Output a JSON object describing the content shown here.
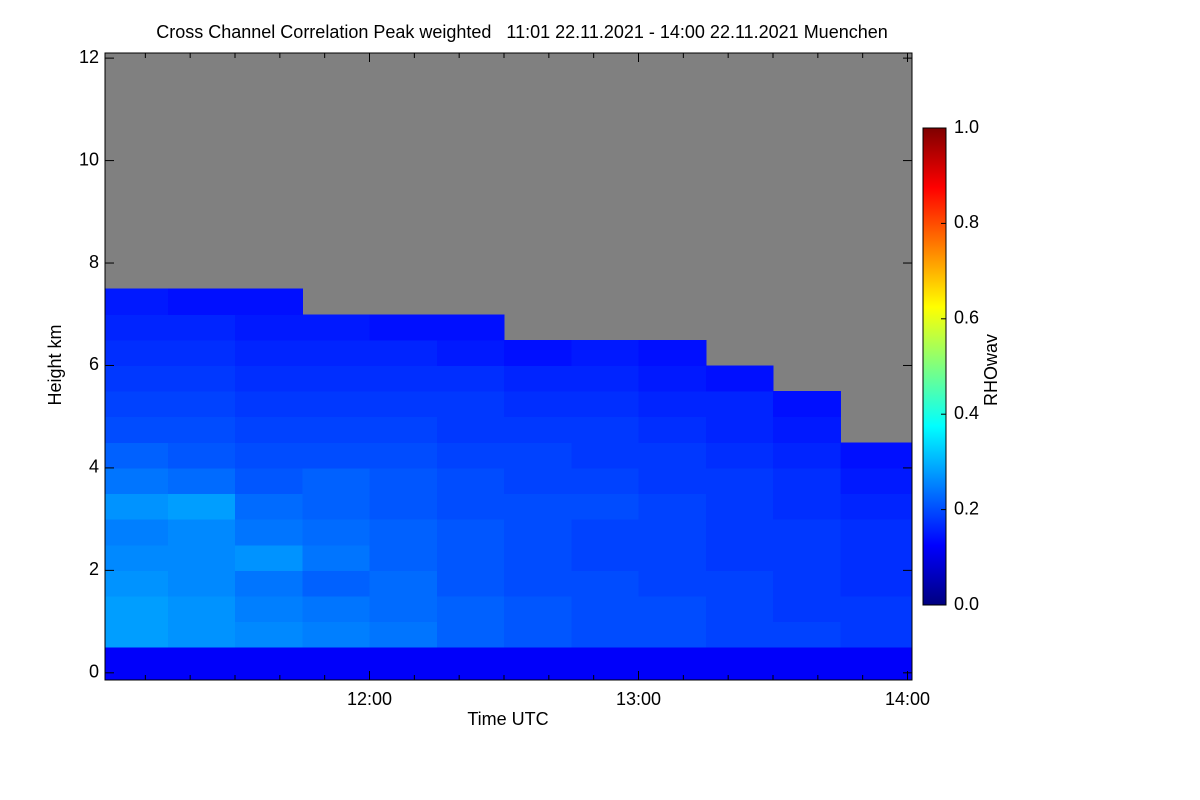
{
  "chart_data": {
    "type": "heatmap",
    "title": "Cross Channel Correlation Peak weighted   11:01 22.11.2021 - 14:00 22.11.2021 Muenchen",
    "xlabel": "Time UTC",
    "ylabel": "Height km",
    "colorbar_label": "RHOwav",
    "xlim": [
      11.0167,
      14.0167
    ],
    "ylim": [
      -0.14,
      12.1
    ],
    "xticks": [
      {
        "value": 12,
        "label": "12:00"
      },
      {
        "value": 13,
        "label": "13:00"
      },
      {
        "value": 14,
        "label": "14:00"
      }
    ],
    "xminorticks": [
      11.1667,
      11.3333,
      11.5,
      11.6667,
      11.8333,
      12.1667,
      12.3333,
      12.5,
      12.6667,
      12.8333,
      13.1667,
      13.3333,
      13.5,
      13.6667,
      13.8333
    ],
    "yticks": [
      0,
      2,
      4,
      6,
      8,
      10,
      12
    ],
    "clim": [
      0,
      1
    ],
    "cticks": [
      {
        "value": 0,
        "label": "0.0"
      },
      {
        "value": 0.2,
        "label": "0.2"
      },
      {
        "value": 0.4,
        "label": "0.4"
      },
      {
        "value": 0.6,
        "label": "0.6"
      },
      {
        "value": 0.8,
        "label": "0.8"
      },
      {
        "value": 1,
        "label": "1.0"
      }
    ],
    "colormap": [
      "#00007f",
      "#0000ff",
      "#007fff",
      "#00ffff",
      "#7fff7f",
      "#ffff00",
      "#ff7f00",
      "#ff0000",
      "#7f0000"
    ],
    "missing_color": "#808080",
    "x_edges": [
      11.0167,
      11.25,
      11.5,
      11.75,
      12,
      12.25,
      12.5,
      12.75,
      13,
      13.25,
      13.5,
      13.75,
      14.0167
    ],
    "y_edges": [
      -0.14,
      0.5,
      1,
      1.5,
      2,
      2.5,
      3,
      3.5,
      4,
      4.5,
      5,
      5.5,
      6,
      6.5,
      7,
      7.5
    ],
    "z": [
      [
        0.12,
        0.12,
        0.12,
        0.12,
        0.12,
        0.12,
        0.12,
        0.12,
        0.12,
        0.12,
        0.12,
        0.12
      ],
      [
        0.28,
        0.27,
        0.26,
        0.25,
        0.24,
        0.22,
        0.21,
        0.2,
        0.2,
        0.19,
        0.19,
        0.18
      ],
      [
        0.28,
        0.27,
        0.25,
        0.24,
        0.23,
        0.22,
        0.21,
        0.2,
        0.2,
        0.19,
        0.18,
        0.18
      ],
      [
        0.27,
        0.26,
        0.24,
        0.22,
        0.23,
        0.21,
        0.2,
        0.2,
        0.19,
        0.19,
        0.18,
        0.17
      ],
      [
        0.26,
        0.26,
        0.27,
        0.24,
        0.22,
        0.21,
        0.2,
        0.19,
        0.19,
        0.18,
        0.18,
        0.17
      ],
      [
        0.25,
        0.26,
        0.24,
        0.23,
        0.22,
        0.21,
        0.2,
        0.19,
        0.19,
        0.18,
        0.18,
        0.17
      ],
      [
        0.27,
        0.28,
        0.23,
        0.22,
        0.21,
        0.2,
        0.2,
        0.2,
        0.19,
        0.18,
        0.17,
        0.16
      ],
      [
        0.24,
        0.23,
        0.21,
        0.22,
        0.21,
        0.2,
        0.19,
        0.19,
        0.18,
        0.18,
        0.17,
        0.15
      ],
      [
        0.22,
        0.21,
        0.2,
        0.2,
        0.2,
        0.19,
        0.19,
        0.18,
        0.18,
        0.17,
        0.16,
        0.14
      ],
      [
        0.2,
        0.2,
        0.19,
        0.19,
        0.19,
        0.18,
        0.18,
        0.18,
        0.17,
        0.16,
        0.15,
        null
      ],
      [
        0.19,
        0.19,
        0.18,
        0.18,
        0.18,
        0.18,
        0.17,
        0.17,
        0.16,
        0.16,
        0.14,
        null
      ],
      [
        0.18,
        0.18,
        0.17,
        0.17,
        0.17,
        0.17,
        0.16,
        0.16,
        0.15,
        0.14,
        null,
        null
      ],
      [
        0.17,
        0.17,
        0.16,
        0.16,
        0.16,
        0.15,
        0.14,
        0.15,
        0.14,
        null,
        null,
        null
      ],
      [
        0.16,
        0.16,
        0.15,
        0.15,
        0.14,
        0.14,
        null,
        null,
        null,
        null,
        null,
        null
      ],
      [
        0.15,
        0.14,
        0.14,
        null,
        null,
        null,
        null,
        null,
        null,
        null,
        null,
        null
      ]
    ]
  }
}
